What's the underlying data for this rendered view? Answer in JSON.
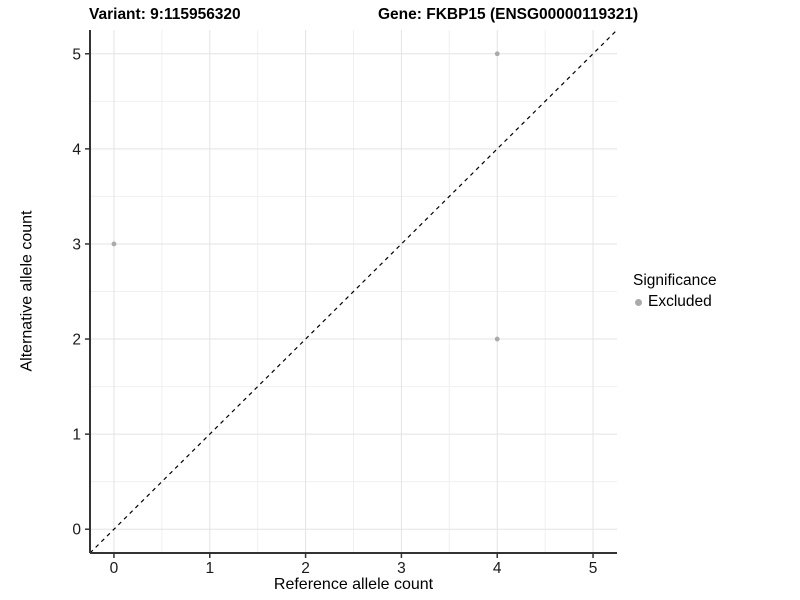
{
  "header": {
    "variant_title": "Variant: 9:115956320",
    "gene_title": "Gene: FKBP15 (ENSG00000119321)"
  },
  "chart_data": {
    "type": "scatter",
    "title": "Variant: 9:115956320 | Gene: FKBP15 (ENSG00000119321)",
    "xlabel": "Reference allele count",
    "ylabel": "Alternative allele count",
    "xlim": [
      -0.25,
      5.25
    ],
    "ylim": [
      -0.25,
      5.25
    ],
    "x_ticks": [
      0,
      1,
      2,
      3,
      4,
      5
    ],
    "y_ticks": [
      0,
      1,
      2,
      3,
      4,
      5
    ],
    "minor_ticks": [
      0.5,
      1.5,
      2.5,
      3.5,
      4.5
    ],
    "grid": true,
    "series": [
      {
        "name": "Excluded",
        "color": "#aaaaaa",
        "points": [
          {
            "x": 0,
            "y": 3
          },
          {
            "x": 4,
            "y": 5
          },
          {
            "x": 4,
            "y": 2
          }
        ]
      }
    ],
    "reference_line": {
      "type": "identity",
      "style": "dashed",
      "color": "#000000"
    },
    "legend": {
      "title": "Significance",
      "position": "right",
      "items": [
        {
          "label": "Excluded",
          "color": "#aaaaaa"
        }
      ]
    }
  },
  "colors": {
    "background": "#ffffff",
    "grid_major": "#e3e3e3",
    "grid_minor": "#f0f0f0",
    "axis_line": "#333333",
    "tick_text": "#1a1a1a",
    "point": "#aaaaaa",
    "dashed_line": "#000000"
  }
}
